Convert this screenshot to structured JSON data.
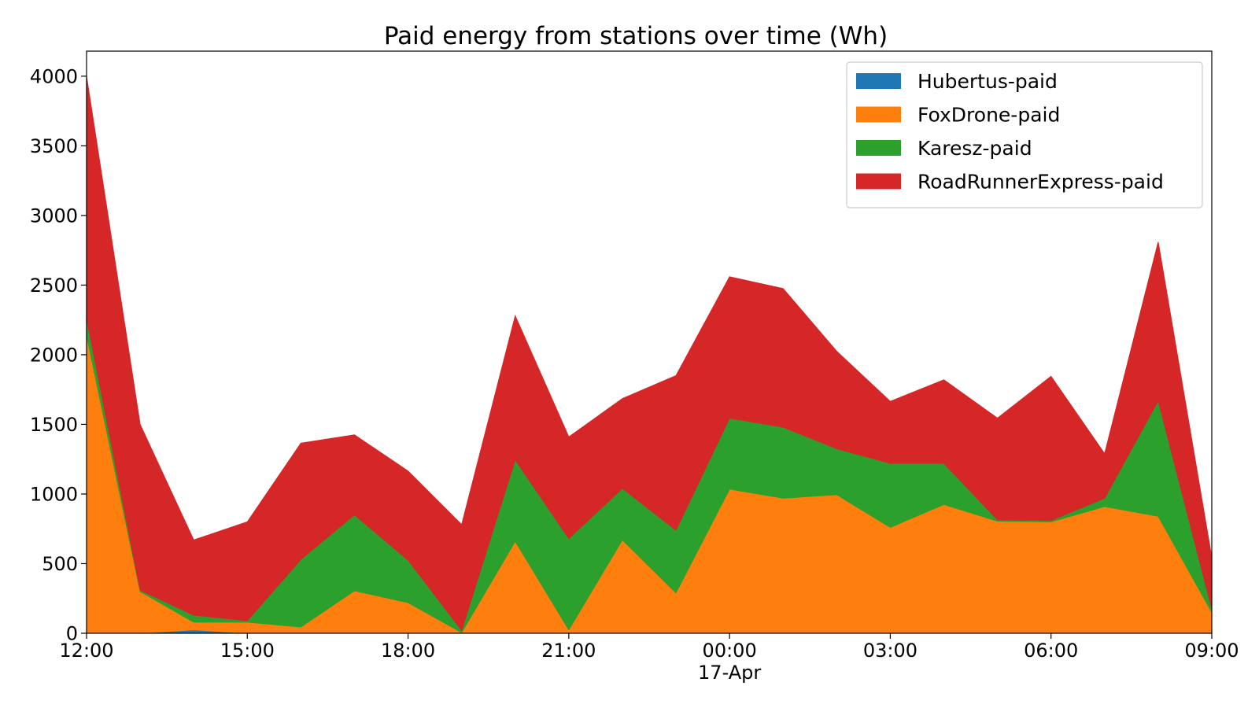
{
  "chart_data": {
    "type": "area",
    "stacked": true,
    "title": "Paid energy from stations over time (Wh)",
    "xlabel": "",
    "ylabel": "",
    "x": [
      "12:00",
      "13:00",
      "14:00",
      "15:00",
      "16:00",
      "17:00",
      "18:00",
      "19:00",
      "20:00",
      "21:00",
      "22:00",
      "23:00",
      "00:00",
      "01:00",
      "02:00",
      "03:00",
      "04:00",
      "05:00",
      "06:00",
      "07:00",
      "08:00",
      "09:00"
    ],
    "x_ticks": [
      {
        "index": 0,
        "label": "12:00",
        "sublabel": ""
      },
      {
        "index": 3,
        "label": "15:00",
        "sublabel": ""
      },
      {
        "index": 6,
        "label": "18:00",
        "sublabel": ""
      },
      {
        "index": 9,
        "label": "21:00",
        "sublabel": ""
      },
      {
        "index": 12,
        "label": "00:00",
        "sublabel": "17-Apr"
      },
      {
        "index": 15,
        "label": "03:00",
        "sublabel": ""
      },
      {
        "index": 18,
        "label": "06:00",
        "sublabel": ""
      },
      {
        "index": 21,
        "label": "09:00",
        "sublabel": ""
      }
    ],
    "ylim": [
      0,
      4180
    ],
    "y_ticks": [
      0,
      500,
      1000,
      1500,
      2000,
      2500,
      3000,
      3500,
      4000
    ],
    "legend_position": "top-right",
    "grid": false,
    "series": [
      {
        "name": "Hubertus-paid",
        "color": "#1f77b4",
        "values": [
          0,
          0,
          25,
          0,
          0,
          0,
          0,
          0,
          0,
          0,
          0,
          0,
          0,
          0,
          0,
          0,
          0,
          0,
          0,
          0,
          0,
          0
        ]
      },
      {
        "name": "FoxDrone-paid",
        "color": "#ff7f0e",
        "values": [
          2140,
          300,
          55,
          80,
          45,
          305,
          220,
          5,
          660,
          25,
          670,
          290,
          1035,
          970,
          995,
          760,
          925,
          805,
          800,
          910,
          840,
          150
        ]
      },
      {
        "name": "Karesz-paid",
        "color": "#2ca02c",
        "values": [
          120,
          10,
          50,
          10,
          485,
          545,
          305,
          15,
          585,
          655,
          370,
          450,
          510,
          510,
          330,
          460,
          295,
          10,
          10,
          60,
          830,
          25
        ]
      },
      {
        "name": "RoadRunnerExpress-paid",
        "color": "#d62728",
        "values": [
          1740,
          1190,
          540,
          710,
          835,
          575,
          640,
          760,
          1035,
          730,
          645,
          1110,
          1015,
          995,
          700,
          445,
          600,
          730,
          1035,
          320,
          1140,
          370
        ]
      }
    ]
  }
}
